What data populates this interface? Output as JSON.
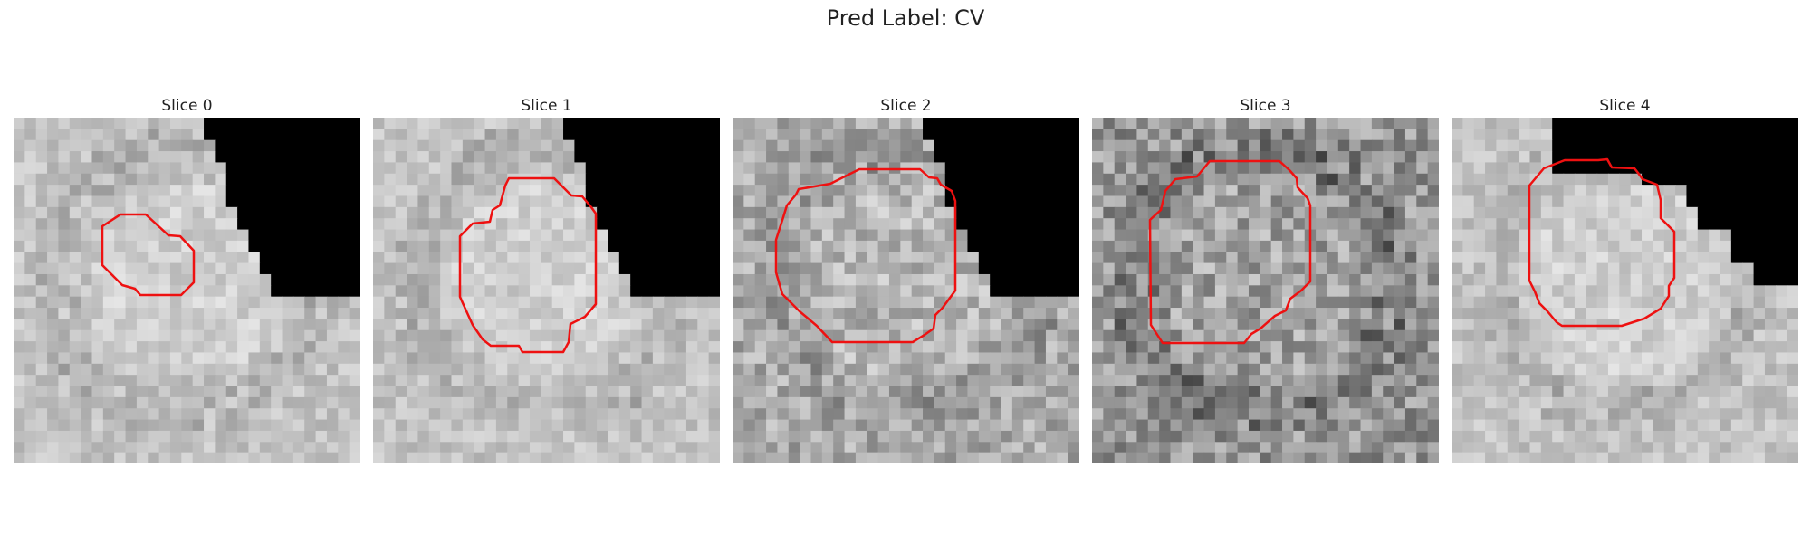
{
  "title": "Pred Label: CV",
  "contour_color": "#ee1111",
  "mask_color": "#000000",
  "panels": [
    {
      "label": "Slice 0"
    },
    {
      "label": "Slice 1"
    },
    {
      "label": "Slice 2"
    },
    {
      "label": "Slice 3"
    },
    {
      "label": "Slice 4"
    }
  ]
}
